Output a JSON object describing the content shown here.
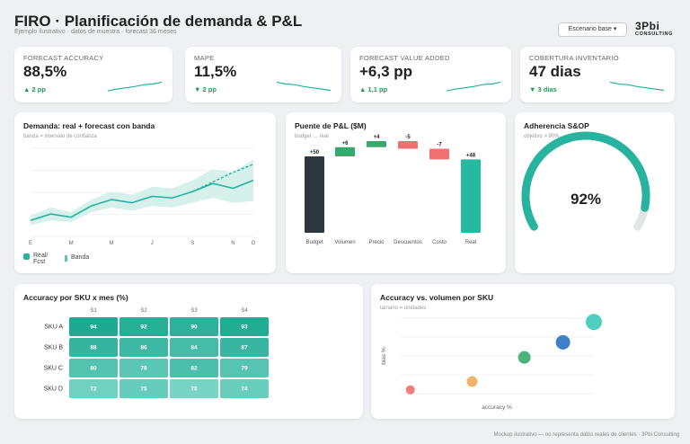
{
  "header": {
    "title": "FIRO · Planificación de demanda & P&L",
    "subtitle": "Ejemplo ilustrativo · datos de muestra · forecast 36 meses",
    "scenario_label": "Escenario base ▾",
    "logo_line1": "3Pbi",
    "logo_line2": "CONSULTING"
  },
  "kpis": [
    {
      "label": "FORECAST ACCURACY",
      "value": "88,5%",
      "delta": "▲ 2 pp",
      "trend": "up",
      "spark": [
        0.2,
        0.35,
        0.45,
        0.55,
        0.7,
        0.75,
        0.9
      ]
    },
    {
      "label": "MAPE",
      "value": "11,5%",
      "delta": "▼ 2 pp",
      "trend": "down",
      "spark": [
        0.9,
        0.75,
        0.7,
        0.55,
        0.45,
        0.35,
        0.25
      ]
    },
    {
      "label": "FORECAST VALUE ADDED",
      "value": "+6,3 pp",
      "delta": "▲ 1,1 pp",
      "trend": "up",
      "spark": [
        0.2,
        0.35,
        0.45,
        0.55,
        0.7,
        0.75,
        0.9
      ]
    },
    {
      "label": "COBERTURA INVENTARIO",
      "value": "47 dias",
      "delta": "▼ 3 dias",
      "trend": "down",
      "spark": [
        0.9,
        0.75,
        0.7,
        0.55,
        0.45,
        0.35,
        0.25
      ]
    }
  ],
  "demand": {
    "title": "Demanda: real + forecast con banda",
    "subtitle": "banda = intervalo de confianza",
    "legend_real": "Real/",
    "legend_real2": "Fcst",
    "legend_band": "Banda",
    "chart_data": {
      "type": "line",
      "categories": [
        "E",
        "F",
        "M",
        "A",
        "M",
        "J",
        "J",
        "A",
        "S",
        "O",
        "N",
        "D"
      ],
      "x_tick_labels": [
        "E",
        "M",
        "M",
        "J",
        "S",
        "N",
        "D"
      ],
      "series": [
        {
          "name": "Real/Fcst",
          "values": [
            10,
            14,
            12,
            19,
            23,
            21,
            25,
            24,
            28,
            33,
            30,
            35
          ]
        },
        {
          "name": "Banda",
          "lower": [
            7,
            10,
            9,
            15,
            18,
            16,
            19,
            18,
            21,
            24,
            21,
            22
          ],
          "upper": [
            13,
            18,
            15,
            23,
            28,
            26,
            31,
            30,
            35,
            42,
            40,
            48
          ]
        }
      ],
      "forecast_dashed": [
        null,
        null,
        null,
        null,
        null,
        null,
        null,
        null,
        28,
        34,
        40,
        45
      ],
      "ylim": [
        0,
        55
      ],
      "grid": true
    }
  },
  "bridge": {
    "title": "Puente de P&L ($M)",
    "subtitle": "budget → real",
    "chart_data": {
      "type": "bar",
      "categories": [
        "Budget",
        "Volumen",
        "Precio",
        "Descuentos",
        "Costo",
        "Real"
      ],
      "values": [
        50,
        6,
        4,
        -5,
        -7,
        48
      ],
      "data_labels": [
        "+50",
        "+6",
        "+4",
        "-5",
        "-7",
        "+48"
      ],
      "colors": [
        "#2e3640",
        "#3aa86a",
        "#3aa86a",
        "#f07070",
        "#f07070",
        "#27b8a2"
      ]
    }
  },
  "adherence": {
    "title": "Adherencia S&OP",
    "subtitle": "objetivo > 90%",
    "value": "92%",
    "fraction": 0.92,
    "colors": {
      "fill": "#27b39d",
      "track": "#e2e5e8"
    }
  },
  "heatmap": {
    "title": "Accuracy por SKU x mes (%)",
    "chart_data": {
      "type": "heatmap",
      "columns": [
        "S1",
        "S2",
        "S3",
        "S4"
      ],
      "rows": [
        "SKU A",
        "SKU B",
        "SKU C",
        "SKU D"
      ],
      "values": [
        [
          94,
          92,
          90,
          93
        ],
        [
          88,
          86,
          84,
          87
        ],
        [
          80,
          78,
          82,
          79
        ],
        [
          72,
          75,
          70,
          74
        ]
      ]
    }
  },
  "scatter": {
    "title": "Accuracy vs. volumen por SKU",
    "subtitle": "tamano = unidades",
    "chart_data": {
      "type": "scatter",
      "xlabel": "accuracy %",
      "ylabel": "bias %",
      "points": [
        {
          "x": 0.05,
          "y": 0.05,
          "size": 5,
          "color": "#f47c7c"
        },
        {
          "x": 0.37,
          "y": 0.16,
          "size": 6,
          "color": "#f2b36b"
        },
        {
          "x": 0.64,
          "y": 0.48,
          "size": 7,
          "color": "#4db37a"
        },
        {
          "x": 0.84,
          "y": 0.68,
          "size": 8,
          "color": "#3f7fc8"
        },
        {
          "x": 1.0,
          "y": 0.95,
          "size": 9,
          "color": "#4fd0be"
        }
      ]
    }
  },
  "footer": "Mockup ilustrativo — no representa datos reales de clientes · 3Pbi Consulting"
}
